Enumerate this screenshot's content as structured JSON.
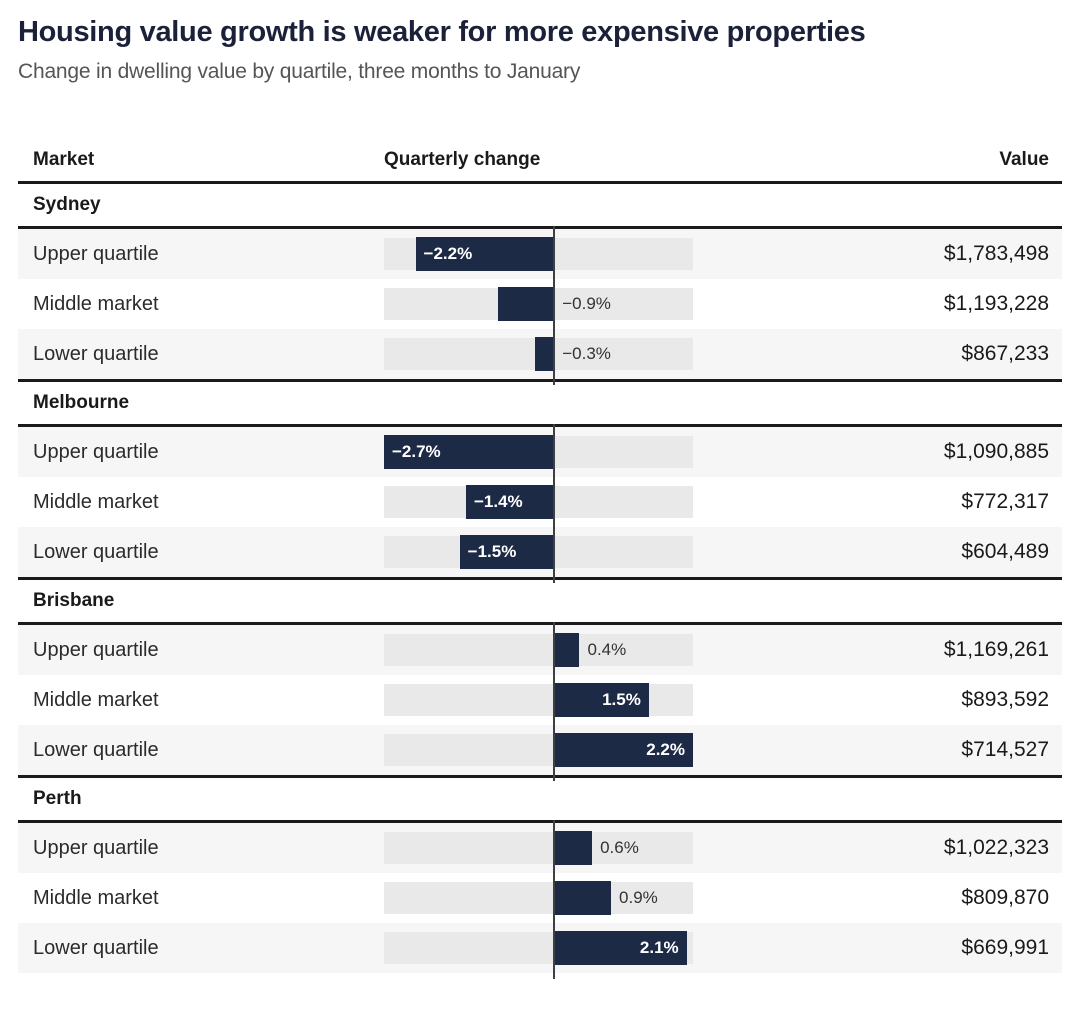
{
  "title": "Housing value growth is weaker for more expensive properties",
  "subtitle": "Change in dwelling value by quartile, three months to January",
  "columns": {
    "market": "Market",
    "change": "Quarterly change",
    "value": "Value"
  },
  "colors": {
    "bar": "#1d2a45",
    "bar_track": "#e9e9e9",
    "row_alt_bg": "#f6f6f6",
    "title_text": "#1b2139",
    "rule": "#1a1a1a",
    "zero_line": "#404040"
  },
  "chart_data": {
    "type": "bar",
    "orientation": "horizontal",
    "unit": "%",
    "axis": {
      "min": -2.7,
      "max": 2.2,
      "zero_line_shown": true,
      "gridlines": false
    },
    "legend": "none",
    "groups": [
      {
        "market": "Sydney",
        "rows": [
          {
            "label": "Upper quartile",
            "change_pct": -2.2,
            "change_label": "−2.2%",
            "label_position": "inside",
            "value": "$1,783,498"
          },
          {
            "label": "Middle market",
            "change_pct": -0.9,
            "change_label": "−0.9%",
            "label_position": "outside",
            "value": "$1,193,228"
          },
          {
            "label": "Lower quartile",
            "change_pct": -0.3,
            "change_label": "−0.3%",
            "label_position": "outside",
            "value": "$867,233"
          }
        ]
      },
      {
        "market": "Melbourne",
        "rows": [
          {
            "label": "Upper quartile",
            "change_pct": -2.7,
            "change_label": "−2.7%",
            "label_position": "inside",
            "value": "$1,090,885"
          },
          {
            "label": "Middle market",
            "change_pct": -1.4,
            "change_label": "−1.4%",
            "label_position": "inside",
            "value": "$772,317"
          },
          {
            "label": "Lower quartile",
            "change_pct": -1.5,
            "change_label": "−1.5%",
            "label_position": "inside",
            "value": "$604,489"
          }
        ]
      },
      {
        "market": "Brisbane",
        "rows": [
          {
            "label": "Upper quartile",
            "change_pct": 0.4,
            "change_label": "0.4%",
            "label_position": "outside",
            "value": "$1,169,261"
          },
          {
            "label": "Middle market",
            "change_pct": 1.5,
            "change_label": "1.5%",
            "label_position": "inside",
            "value": "$893,592"
          },
          {
            "label": "Lower quartile",
            "change_pct": 2.2,
            "change_label": "2.2%",
            "label_position": "inside",
            "value": "$714,527"
          }
        ]
      },
      {
        "market": "Perth",
        "rows": [
          {
            "label": "Upper quartile",
            "change_pct": 0.6,
            "change_label": "0.6%",
            "label_position": "outside",
            "value": "$1,022,323"
          },
          {
            "label": "Middle market",
            "change_pct": 0.9,
            "change_label": "0.9%",
            "label_position": "outside",
            "value": "$809,870"
          },
          {
            "label": "Lower quartile",
            "change_pct": 2.1,
            "change_label": "2.1%",
            "label_position": "inside",
            "value": "$669,991"
          }
        ]
      }
    ]
  }
}
